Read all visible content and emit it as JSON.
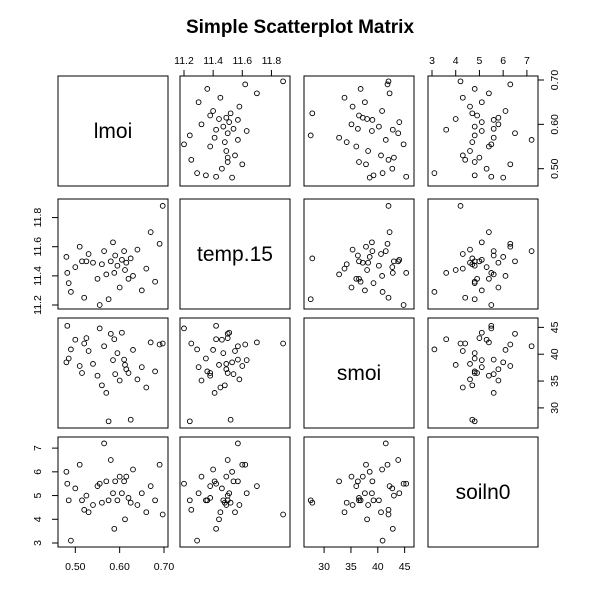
{
  "chart_data": {
    "type": "scatter",
    "title": "Simple Scatterplot Matrix",
    "variables": [
      "lmoi",
      "temp.15",
      "smoi",
      "soiln0"
    ],
    "ranges": {
      "lmoi": [
        0.47,
        0.7
      ],
      "temp.15": [
        11.2,
        11.9
      ],
      "smoi": [
        27,
        46
      ],
      "soiln0": [
        3,
        7.3
      ]
    },
    "ticks": {
      "lmoi": [
        0.5,
        0.6,
        0.7
      ],
      "temp.15": [
        11.2,
        11.4,
        11.6,
        11.8
      ],
      "smoi": [
        30,
        35,
        40,
        45
      ],
      "soiln0": [
        3,
        4,
        5,
        6,
        7
      ]
    },
    "tick_labels": {
      "lmoi": [
        "0.50",
        "0.60",
        "0.70"
      ],
      "temp.15": [
        "11.2",
        "11.4",
        "11.6",
        "11.8"
      ],
      "smoi": [
        "30",
        "35",
        "40",
        "45"
      ],
      "soiln0": [
        "3",
        "4",
        "5",
        "6",
        "7"
      ]
    },
    "observations": [
      {
        "lmoi": 0.48,
        "temp.15": 11.53,
        "smoi": 38.5,
        "soiln0": 6.0
      },
      {
        "lmoi": 0.482,
        "temp.15": 11.42,
        "smoi": 45.3,
        "soiln0": 5.5
      },
      {
        "lmoi": 0.485,
        "temp.15": 11.35,
        "smoi": 39.2,
        "soiln0": 4.8
      },
      {
        "lmoi": 0.49,
        "temp.15": 11.29,
        "smoi": 40.9,
        "soiln0": 3.1
      },
      {
        "lmoi": 0.5,
        "temp.15": 11.46,
        "smoi": 42.7,
        "soiln0": 5.3
      },
      {
        "lmoi": 0.51,
        "temp.15": 11.6,
        "smoi": 37.8,
        "soiln0": 6.3
      },
      {
        "lmoi": 0.515,
        "temp.15": 11.5,
        "smoi": 36.5,
        "soiln0": 4.8
      },
      {
        "lmoi": 0.52,
        "temp.15": 11.25,
        "smoi": 42.0,
        "soiln0": 4.4
      },
      {
        "lmoi": 0.525,
        "temp.15": 11.5,
        "smoi": 43.0,
        "soiln0": 5.0
      },
      {
        "lmoi": 0.53,
        "temp.15": 11.55,
        "smoi": 40.6,
        "soiln0": 4.3
      },
      {
        "lmoi": 0.54,
        "temp.15": 11.49,
        "smoi": 38.2,
        "soiln0": 4.6
      },
      {
        "lmoi": 0.55,
        "temp.15": 11.38,
        "smoi": 36.0,
        "soiln0": 5.4
      },
      {
        "lmoi": 0.555,
        "temp.15": 11.2,
        "smoi": 44.8,
        "soiln0": 5.5
      },
      {
        "lmoi": 0.56,
        "temp.15": 11.48,
        "smoi": 34.2,
        "soiln0": 4.7
      },
      {
        "lmoi": 0.565,
        "temp.15": 11.57,
        "smoi": 41.5,
        "soiln0": 7.2
      },
      {
        "lmoi": 0.57,
        "temp.15": 11.41,
        "smoi": 32.8,
        "soiln0": 5.6
      },
      {
        "lmoi": 0.575,
        "temp.15": 11.24,
        "smoi": 27.5,
        "soiln0": 4.8
      },
      {
        "lmoi": 0.58,
        "temp.15": 11.5,
        "smoi": 43.8,
        "soiln0": 6.5
      },
      {
        "lmoi": 0.585,
        "temp.15": 11.63,
        "smoi": 38.9,
        "soiln0": 5.1
      },
      {
        "lmoi": 0.588,
        "temp.15": 11.42,
        "smoi": 42.8,
        "soiln0": 3.6
      },
      {
        "lmoi": 0.59,
        "temp.15": 11.54,
        "smoi": 36.3,
        "soiln0": 5.6
      },
      {
        "lmoi": 0.595,
        "temp.15": 11.47,
        "smoi": 40.2,
        "soiln0": 4.8
      },
      {
        "lmoi": 0.6,
        "temp.15": 11.32,
        "smoi": 35.1,
        "soiln0": 5.8
      },
      {
        "lmoi": 0.605,
        "temp.15": 11.51,
        "smoi": 44.0,
        "soiln0": 5.1
      },
      {
        "lmoi": 0.61,
        "temp.15": 11.57,
        "smoi": 39.0,
        "soiln0": 5.6
      },
      {
        "lmoi": 0.612,
        "temp.15": 11.44,
        "smoi": 38.0,
        "soiln0": 4.0
      },
      {
        "lmoi": 0.615,
        "temp.15": 11.49,
        "smoi": 37.2,
        "soiln0": 5.8
      },
      {
        "lmoi": 0.62,
        "temp.15": 11.38,
        "smoi": 36.5,
        "soiln0": 4.9
      },
      {
        "lmoi": 0.625,
        "temp.15": 11.52,
        "smoi": 27.8,
        "soiln0": 4.7
      },
      {
        "lmoi": 0.63,
        "temp.15": 11.4,
        "smoi": 40.8,
        "soiln0": 6.1
      },
      {
        "lmoi": 0.64,
        "temp.15": 11.58,
        "smoi": 35.3,
        "soiln0": 4.6
      },
      {
        "lmoi": 0.65,
        "temp.15": 11.3,
        "smoi": 37.6,
        "soiln0": 5.1
      },
      {
        "lmoi": 0.66,
        "temp.15": 11.45,
        "smoi": 33.8,
        "soiln0": 4.3
      },
      {
        "lmoi": 0.67,
        "temp.15": 11.7,
        "smoi": 42.2,
        "soiln0": 5.4
      },
      {
        "lmoi": 0.68,
        "temp.15": 11.36,
        "smoi": 36.8,
        "soiln0": 4.8
      },
      {
        "lmoi": 0.69,
        "temp.15": 11.62,
        "smoi": 41.8,
        "soiln0": 6.3
      },
      {
        "lmoi": 0.697,
        "temp.15": 11.88,
        "smoi": 42.0,
        "soiln0": 4.2
      }
    ]
  }
}
